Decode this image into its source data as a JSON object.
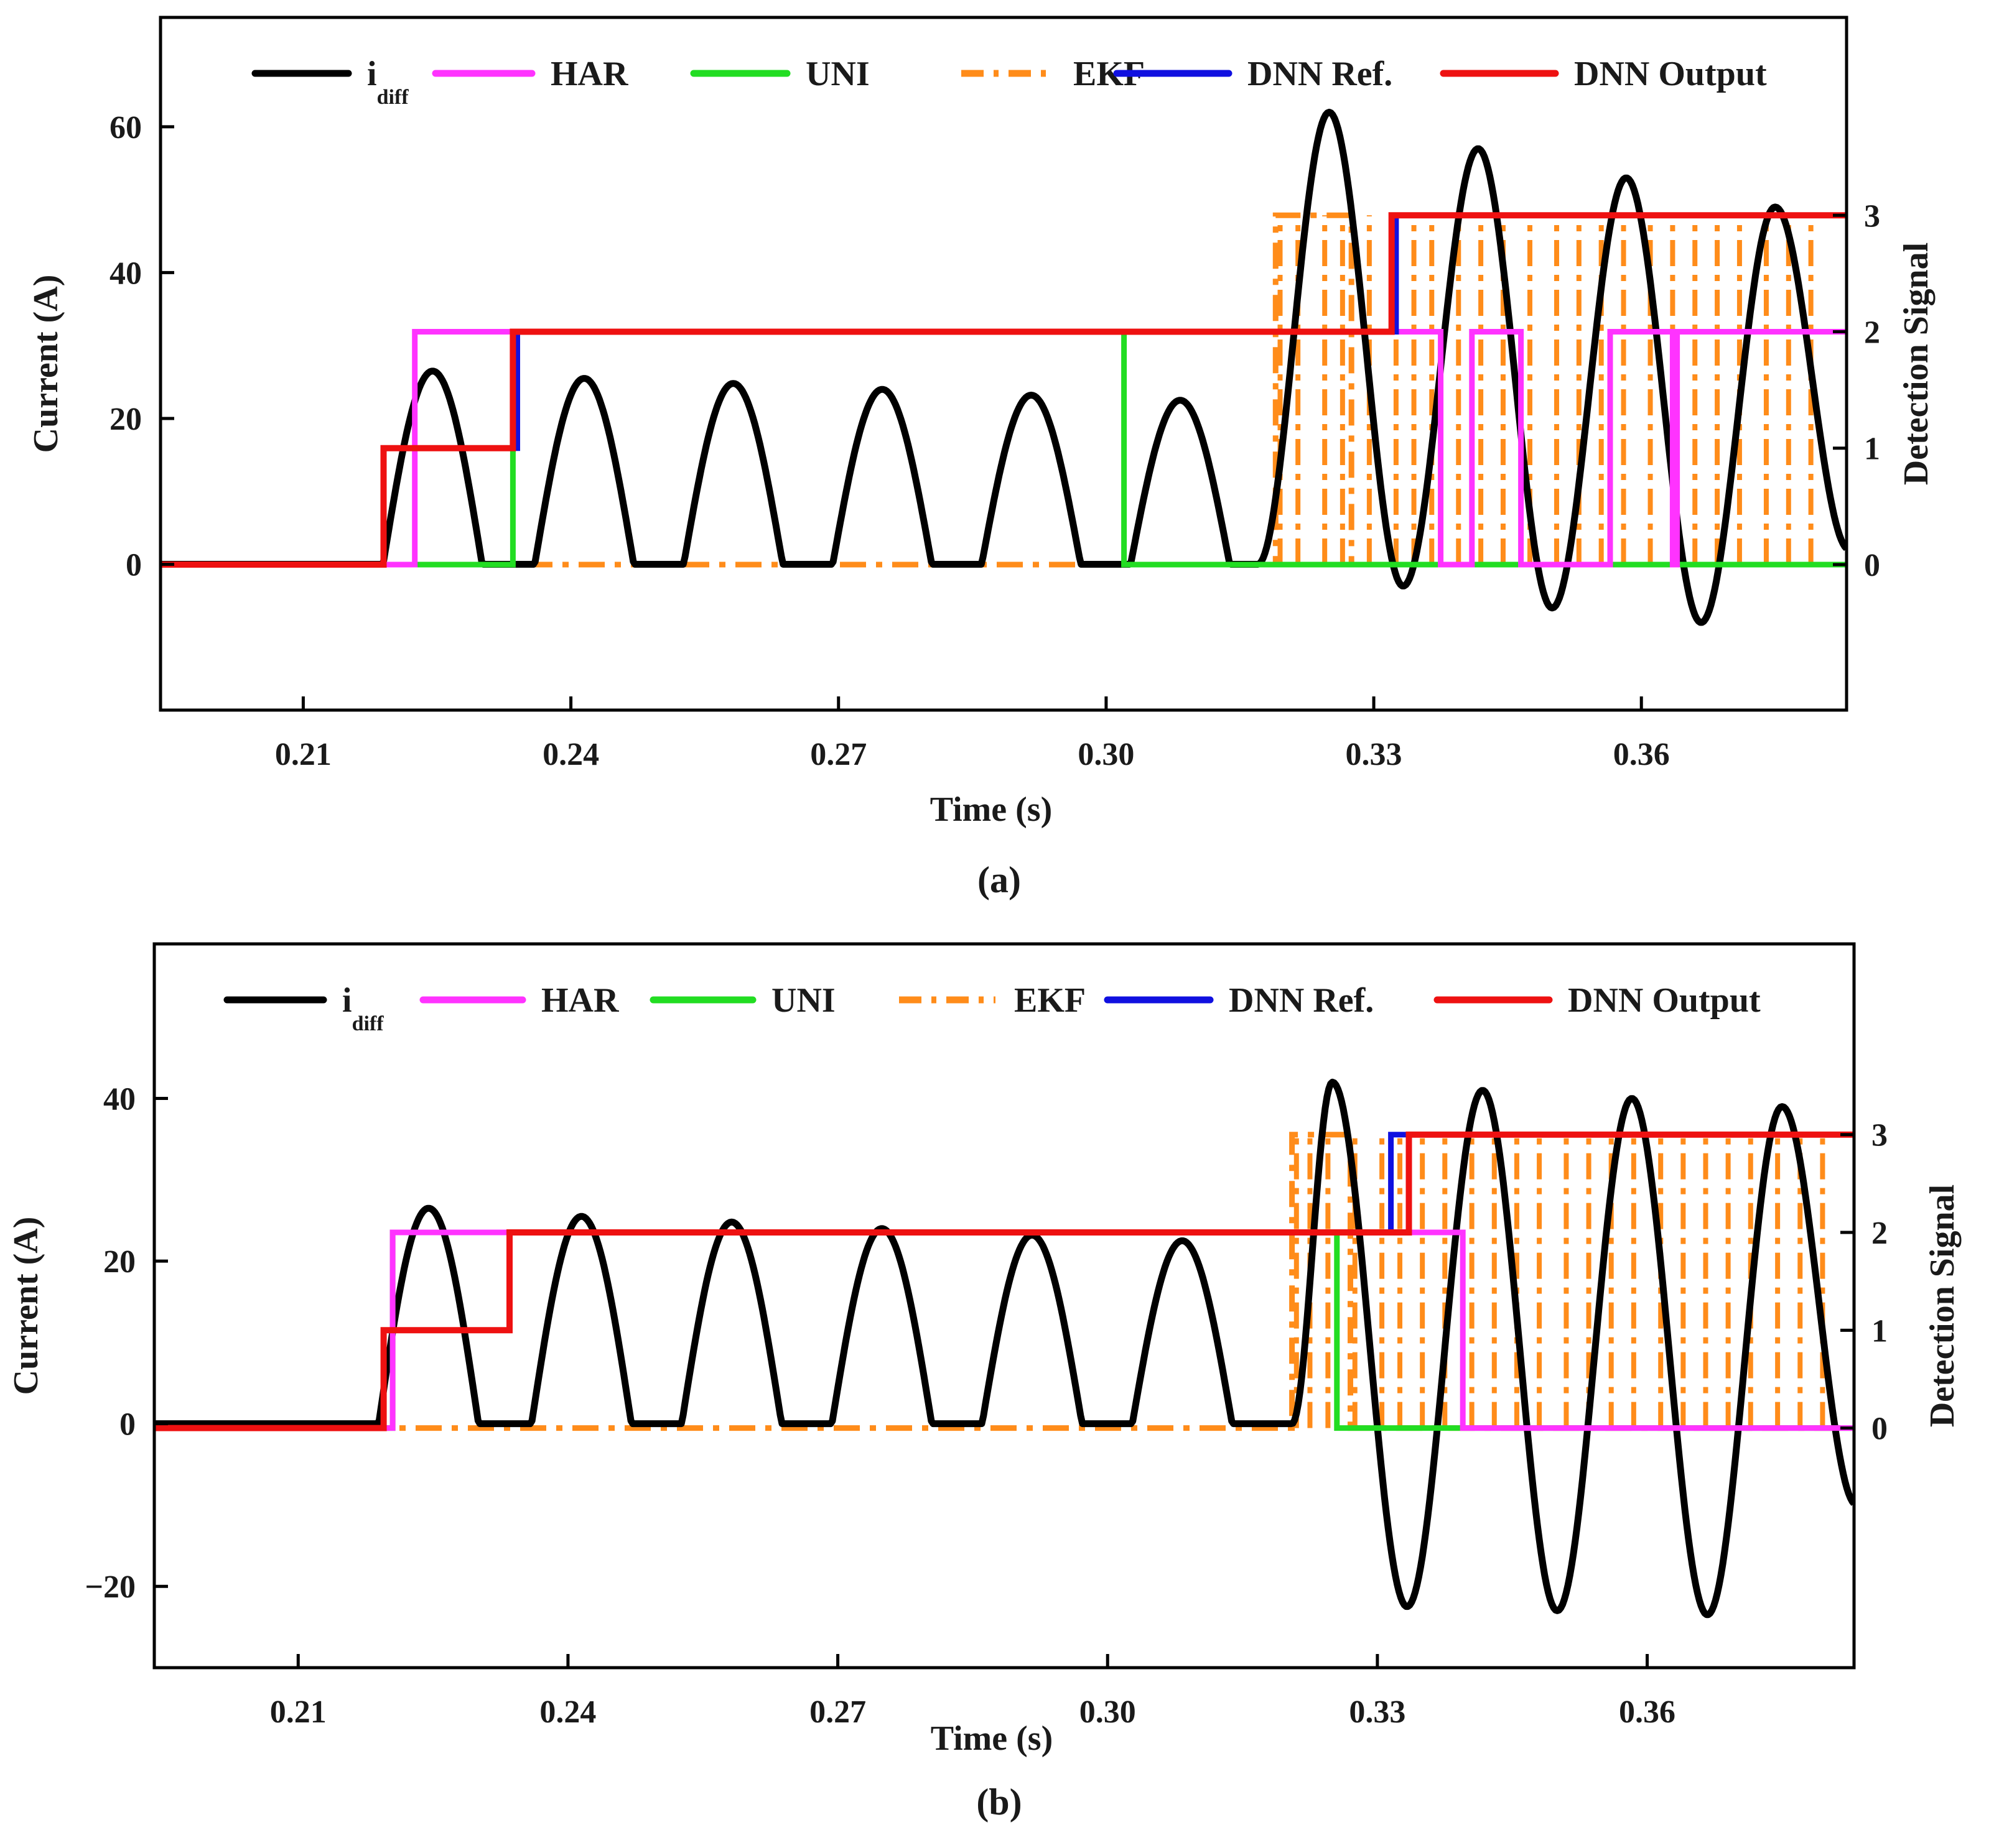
{
  "colors": {
    "idiff": "#000000",
    "HAR": "#ff33ff",
    "UNI": "#22dd22",
    "EKF": "#ff8c1a",
    "DNN_Ref": "#1010e0",
    "DNN_Output": "#ee1111",
    "axis": "#000000"
  },
  "chart_data": [
    {
      "id": "a",
      "type": "line",
      "caption": "(a)",
      "xlabel": "Time (s)",
      "ylabel_left": "Current (A)",
      "ylabel_right": "Detection Signal",
      "xlim": [
        0.194,
        0.383
      ],
      "ylim_left": [
        -20,
        75
      ],
      "ylim_right": [
        -1.25,
        4.7
      ],
      "xticks": [
        0.21,
        0.24,
        0.27,
        0.3,
        0.33,
        0.36
      ],
      "xtick_labels": [
        "0.21",
        "0.24",
        "0.27",
        "0.30",
        "0.33",
        "0.36"
      ],
      "yticks_left": [
        0,
        20,
        40,
        60
      ],
      "yticks_left_labels": [
        "0",
        "20",
        "40",
        "60"
      ],
      "yticks_right": [
        0,
        1,
        2,
        3
      ],
      "yticks_right_labels": [
        "0",
        "1",
        "2",
        "3"
      ],
      "legend": [
        {
          "key": "idiff",
          "label": "i",
          "subscript": "diff",
          "style": "solid"
        },
        {
          "key": "HAR",
          "label": "HAR",
          "style": "solid"
        },
        {
          "key": "UNI",
          "label": "UNI",
          "style": "solid"
        },
        {
          "key": "EKF",
          "label": "EKF",
          "style": "dashdot"
        },
        {
          "key": "DNN_Ref",
          "label": "DNN Ref.",
          "style": "solid"
        },
        {
          "key": "DNN_Output",
          "label": "DNN Output",
          "style": "solid"
        }
      ],
      "current": {
        "start": 0.2185,
        "inrush_peaks": [
          {
            "t": 0.2245,
            "a": 26.5
          },
          {
            "t": 0.2415,
            "a": 25.5
          },
          {
            "t": 0.2582,
            "a": 24.8
          },
          {
            "t": 0.2749,
            "a": 24.0
          },
          {
            "t": 0.2916,
            "a": 23.2
          },
          {
            "t": 0.3083,
            "a": 22.5
          }
        ],
        "fault_start": 0.317,
        "fault_peaks": [
          {
            "t": 0.325,
            "a": 62
          },
          {
            "t": 0.3333,
            "a": -3
          },
          {
            "t": 0.3417,
            "a": 57
          },
          {
            "t": 0.35,
            "a": -6
          },
          {
            "t": 0.3583,
            "a": 53
          },
          {
            "t": 0.3667,
            "a": -8
          },
          {
            "t": 0.375,
            "a": 49
          },
          {
            "t": 0.3833,
            "a": 2
          }
        ]
      },
      "signals": {
        "HAR": [
          [
            0.194,
            0
          ],
          [
            0.2225,
            0
          ],
          [
            0.2225,
            2
          ],
          [
            0.3375,
            2
          ],
          [
            0.3375,
            0
          ],
          [
            0.341,
            0
          ],
          [
            0.341,
            2
          ],
          [
            0.3465,
            2
          ],
          [
            0.3465,
            0
          ],
          [
            0.3565,
            0
          ],
          [
            0.3565,
            2
          ],
          [
            0.3635,
            2
          ],
          [
            0.3635,
            0
          ],
          [
            0.364,
            0
          ],
          [
            0.364,
            2
          ],
          [
            0.383,
            2
          ]
        ],
        "UNI": [
          [
            0.194,
            0
          ],
          [
            0.2335,
            0
          ],
          [
            0.2335,
            2
          ],
          [
            0.302,
            2
          ],
          [
            0.302,
            0
          ],
          [
            0.383,
            0
          ]
        ],
        "EKF": [
          [
            0.194,
            0
          ],
          [
            0.319,
            0
          ],
          [
            0.319,
            3
          ],
          [
            0.3275,
            3
          ],
          [
            0.3275,
            0
          ],
          [
            0.383,
            0
          ]
        ],
        "EKF_spikes": [
          0.3195,
          0.3215,
          0.3245,
          0.3265,
          0.3295,
          0.3325,
          0.3345,
          0.3365,
          0.3395,
          0.342,
          0.3445,
          0.3475,
          0.3505,
          0.353,
          0.3555,
          0.358,
          0.361,
          0.3635,
          0.366,
          0.3685,
          0.371,
          0.374,
          0.3765,
          0.379
        ],
        "DNN_Ref": [
          [
            0.194,
            0
          ],
          [
            0.219,
            0
          ],
          [
            0.219,
            1
          ],
          [
            0.234,
            1
          ],
          [
            0.234,
            2
          ],
          [
            0.3325,
            2
          ],
          [
            0.3325,
            3
          ],
          [
            0.383,
            3
          ]
        ],
        "DNN_Output": [
          [
            0.194,
            0
          ],
          [
            0.219,
            0
          ],
          [
            0.219,
            1
          ],
          [
            0.2335,
            1
          ],
          [
            0.2335,
            2
          ],
          [
            0.332,
            2
          ],
          [
            0.332,
            3
          ],
          [
            0.383,
            3
          ]
        ]
      }
    },
    {
      "id": "b",
      "type": "line",
      "caption": "(b)",
      "xlabel": "Time (s)",
      "ylabel_left": "Current (A)",
      "ylabel_right": "Detection Signal",
      "xlim": [
        0.194,
        0.383
      ],
      "ylim_left": [
        -30,
        59
      ],
      "ylim_right": [
        -2.45,
        4.95
      ],
      "xticks": [
        0.21,
        0.24,
        0.27,
        0.3,
        0.33,
        0.36
      ],
      "xtick_labels": [
        "0.21",
        "0.24",
        "0.27",
        "0.30",
        "0.33",
        "0.36"
      ],
      "yticks_left": [
        -20,
        0,
        20,
        40
      ],
      "yticks_left_labels": [
        "−20",
        "0",
        "20",
        "40"
      ],
      "yticks_right": [
        0,
        1,
        2,
        3
      ],
      "yticks_right_labels": [
        "0",
        "1",
        "2",
        "3"
      ],
      "legend": [
        {
          "key": "idiff",
          "label": "i",
          "subscript": "diff",
          "style": "solid"
        },
        {
          "key": "HAR",
          "label": "HAR",
          "style": "solid"
        },
        {
          "key": "UNI",
          "label": "UNI",
          "style": "solid"
        },
        {
          "key": "EKF",
          "label": "EKF",
          "style": "dashdot"
        },
        {
          "key": "DNN_Ref",
          "label": "DNN Ref.",
          "style": "solid"
        },
        {
          "key": "DNN_Output",
          "label": "DNN Output",
          "style": "solid"
        }
      ],
      "current": {
        "start": 0.2185,
        "inrush_peaks": [
          {
            "t": 0.2245,
            "a": 26.5
          },
          {
            "t": 0.2415,
            "a": 25.5
          },
          {
            "t": 0.2582,
            "a": 24.8
          },
          {
            "t": 0.2749,
            "a": 24.0
          },
          {
            "t": 0.2916,
            "a": 23.2
          },
          {
            "t": 0.3083,
            "a": 22.5
          }
        ],
        "fault_start": 0.3205,
        "fault_peaks": [
          {
            "t": 0.325,
            "a": 42
          },
          {
            "t": 0.3333,
            "a": -22.5
          },
          {
            "t": 0.3417,
            "a": 41
          },
          {
            "t": 0.35,
            "a": -23
          },
          {
            "t": 0.3583,
            "a": 40
          },
          {
            "t": 0.3667,
            "a": -23.5
          },
          {
            "t": 0.375,
            "a": 39
          },
          {
            "t": 0.3833,
            "a": -10
          }
        ]
      },
      "signals": {
        "HAR": [
          [
            0.194,
            0
          ],
          [
            0.2205,
            0
          ],
          [
            0.2205,
            2
          ],
          [
            0.3395,
            2
          ],
          [
            0.3395,
            0
          ],
          [
            0.383,
            0
          ]
        ],
        "UNI": [
          [
            0.194,
            0
          ],
          [
            0.2205,
            0
          ],
          [
            0.2205,
            2
          ],
          [
            0.3255,
            2
          ],
          [
            0.3255,
            0
          ],
          [
            0.383,
            0
          ]
        ],
        "EKF": [
          [
            0.194,
            0
          ],
          [
            0.3205,
            0
          ],
          [
            0.3205,
            3
          ],
          [
            0.327,
            3
          ],
          [
            0.327,
            0
          ],
          [
            0.383,
            0
          ]
        ],
        "EKF_spikes": [
          0.321,
          0.3225,
          0.3245,
          0.3275,
          0.3305,
          0.3325,
          0.335,
          0.3375,
          0.3405,
          0.343,
          0.3455,
          0.348,
          0.351,
          0.3535,
          0.356,
          0.3585,
          0.3615,
          0.364,
          0.3665,
          0.369,
          0.3715,
          0.3745,
          0.377,
          0.3795
        ],
        "DNN_Ref": [
          [
            0.194,
            0
          ],
          [
            0.2195,
            0
          ],
          [
            0.2195,
            1
          ],
          [
            0.2335,
            1
          ],
          [
            0.2335,
            2
          ],
          [
            0.3315,
            2
          ],
          [
            0.3315,
            3
          ],
          [
            0.383,
            3
          ]
        ],
        "DNN_Output": [
          [
            0.194,
            0
          ],
          [
            0.2195,
            0
          ],
          [
            0.2195,
            1
          ],
          [
            0.2335,
            1
          ],
          [
            0.2335,
            2
          ],
          [
            0.3335,
            2
          ],
          [
            0.3335,
            3
          ],
          [
            0.383,
            3
          ]
        ]
      }
    }
  ]
}
